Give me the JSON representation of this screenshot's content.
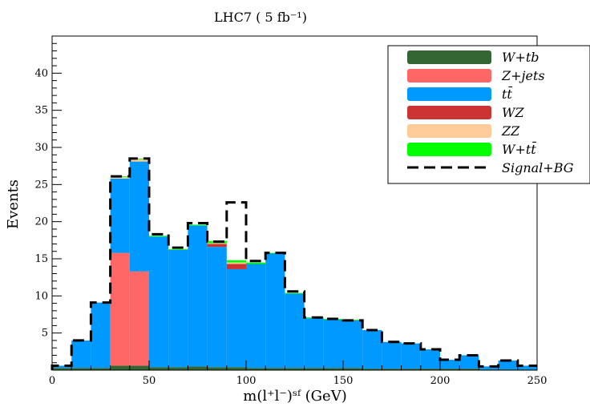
{
  "chart_data": {
    "type": "bar",
    "title": "LHC7 ( 5 fb⁻¹)",
    "xlabel": "m(l⁺l⁻)ˢᶠ (GeV)",
    "ylabel": "Events",
    "xlim": [
      0,
      250
    ],
    "ylim": [
      0,
      45
    ],
    "bin_width": 10,
    "xticks": [
      0,
      50,
      100,
      150,
      200,
      250
    ],
    "yticks": [
      5,
      10,
      15,
      20,
      25,
      30,
      35,
      40
    ],
    "grid": false,
    "legend_position": "top-right",
    "bin_low_edges": [
      0,
      10,
      20,
      30,
      40,
      50,
      60,
      70,
      80,
      90,
      100,
      110,
      120,
      130,
      140,
      150,
      160,
      170,
      180,
      190,
      200,
      210,
      220,
      230,
      240
    ],
    "series": [
      {
        "name": "W+tb",
        "color": "#336633",
        "values": [
          0.3,
          0.3,
          0.3,
          0.6,
          0.6,
          0.4,
          0.4,
          0.5,
          0.4,
          0.4,
          0.3,
          0.3,
          0.3,
          0.3,
          0.3,
          0.3,
          0.2,
          0.2,
          0.2,
          0.2,
          0.2,
          0.2,
          0.1,
          0.1,
          0.1
        ]
      },
      {
        "name": "Z+jets",
        "color": "#ff6666",
        "values": [
          0,
          0,
          0,
          15.2,
          12.7,
          0,
          0,
          0,
          0,
          0,
          0,
          0,
          0,
          0,
          0,
          0,
          0,
          0,
          0,
          0,
          0,
          0,
          0,
          0,
          0
        ]
      },
      {
        "name": "tt̄",
        "color": "#0099ff",
        "values": [
          0.3,
          3.7,
          8.8,
          10.0,
          14.8,
          17.6,
          15.8,
          19.0,
          16.2,
          13.2,
          14.0,
          15.4,
          10.0,
          6.7,
          6.5,
          6.4,
          5.2,
          3.6,
          3.4,
          2.6,
          1.2,
          1.8,
          0.4,
          1.2,
          0.5
        ]
      },
      {
        "name": "WZ",
        "color": "#cc3333",
        "values": [
          0,
          0,
          0,
          0,
          0,
          0,
          0,
          0,
          0.4,
          0.7,
          0,
          0,
          0,
          0,
          0,
          0,
          0,
          0,
          0,
          0,
          0,
          0,
          0,
          0,
          0
        ]
      },
      {
        "name": "ZZ",
        "color": "#ffcc99",
        "values": [
          0,
          0,
          0,
          0.2,
          0.3,
          0,
          0,
          0,
          0.1,
          0.2,
          0,
          0,
          0,
          0,
          0,
          0,
          0,
          0,
          0,
          0,
          0,
          0,
          0,
          0,
          0
        ]
      },
      {
        "name": "W+tt̄",
        "color": "#00ff00",
        "values": [
          0,
          0,
          0,
          0.1,
          0.1,
          0.1,
          0.1,
          0.1,
          0.3,
          0.3,
          0.2,
          0.1,
          0.1,
          0.1,
          0.1,
          0.1,
          0,
          0,
          0,
          0,
          0,
          0,
          0,
          0,
          0
        ]
      }
    ],
    "signal_plus_bg": {
      "name": "Signal+BG",
      "color": "#000000",
      "values": [
        0.6,
        4.0,
        9.1,
        26.1,
        28.5,
        18.3,
        16.5,
        19.8,
        17.3,
        22.6,
        14.7,
        15.8,
        10.6,
        7.1,
        6.9,
        6.7,
        5.4,
        3.8,
        3.6,
        2.8,
        1.4,
        2.0,
        0.5,
        1.3,
        0.6
      ]
    }
  }
}
